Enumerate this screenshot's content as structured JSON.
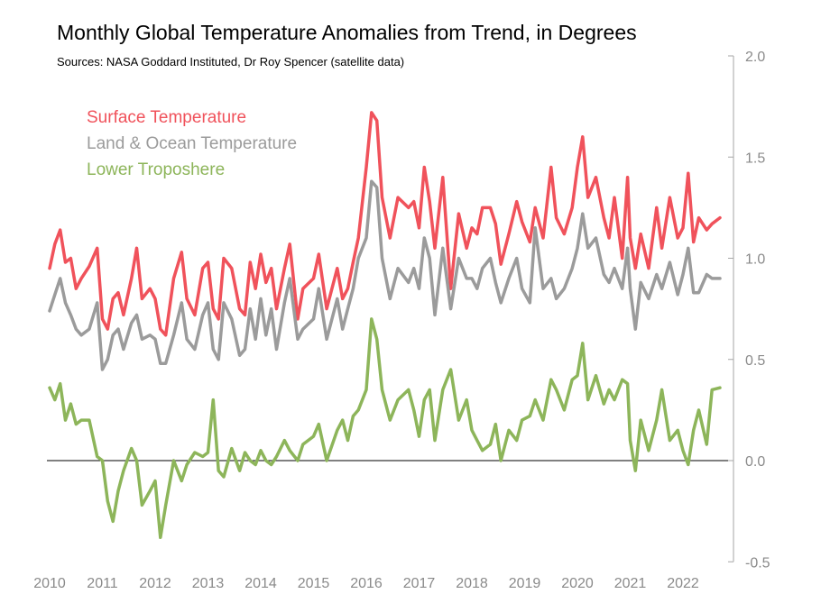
{
  "chart_data": {
    "type": "line",
    "title": "Monthly Global Temperature Anomalies from Trend, in Degrees",
    "subtitle": "Sources: NASA Goddard Instituted, Dr Roy Spencer (satellite data)",
    "x_tick_labels": [
      "2010",
      "2011",
      "2012",
      "2013",
      "2014",
      "2015",
      "2016",
      "2017",
      "2018",
      "2019",
      "2020",
      "2021",
      "2022"
    ],
    "y_tick_labels": [
      "2.0",
      "1.5",
      "1.0",
      "0.5",
      "0.0",
      "-0.5"
    ],
    "ylim": [
      -0.5,
      2.0
    ],
    "xlim": [
      2010.0,
      2022.75
    ],
    "y_axis_position": "right",
    "grid": false,
    "legend_position": "top-left",
    "series": [
      {
        "name": "Surface Temperature",
        "color": "#f0525b",
        "x": [
          2010.0,
          2010.1,
          2010.2,
          2010.3,
          2010.4,
          2010.5,
          2010.6,
          2010.75,
          2010.9,
          2011.0,
          2011.1,
          2011.2,
          2011.3,
          2011.4,
          2011.55,
          2011.65,
          2011.75,
          2011.9,
          2012.0,
          2012.1,
          2012.2,
          2012.35,
          2012.5,
          2012.6,
          2012.75,
          2012.9,
          2013.0,
          2013.1,
          2013.2,
          2013.3,
          2013.45,
          2013.6,
          2013.7,
          2013.8,
          2013.9,
          2014.0,
          2014.1,
          2014.2,
          2014.3,
          2014.45,
          2014.55,
          2014.7,
          2014.8,
          2015.0,
          2015.1,
          2015.25,
          2015.45,
          2015.55,
          2015.65,
          2015.75,
          2015.85,
          2016.0,
          2016.1,
          2016.2,
          2016.3,
          2016.45,
          2016.6,
          2016.8,
          2016.9,
          2017.0,
          2017.1,
          2017.2,
          2017.3,
          2017.45,
          2017.6,
          2017.75,
          2017.9,
          2018.0,
          2018.1,
          2018.2,
          2018.35,
          2018.45,
          2018.55,
          2018.7,
          2018.85,
          2018.95,
          2019.1,
          2019.2,
          2019.35,
          2019.5,
          2019.6,
          2019.75,
          2019.9,
          2020.0,
          2020.1,
          2020.2,
          2020.35,
          2020.5,
          2020.6,
          2020.7,
          2020.85,
          2020.95,
          2021.0,
          2021.1,
          2021.2,
          2021.35,
          2021.5,
          2021.6,
          2021.75,
          2021.9,
          2022.0,
          2022.1,
          2022.2,
          2022.3,
          2022.45,
          2022.55,
          2022.7
        ],
        "y": [
          0.95,
          1.07,
          1.14,
          0.98,
          1.0,
          0.85,
          0.9,
          0.96,
          1.05,
          0.7,
          0.65,
          0.8,
          0.83,
          0.72,
          0.9,
          1.05,
          0.8,
          0.85,
          0.8,
          0.65,
          0.62,
          0.9,
          1.03,
          0.8,
          0.72,
          0.95,
          0.98,
          0.75,
          0.7,
          1.0,
          0.95,
          0.75,
          0.72,
          0.98,
          0.85,
          1.02,
          0.88,
          0.95,
          0.75,
          0.95,
          1.07,
          0.7,
          0.85,
          0.9,
          1.02,
          0.75,
          0.95,
          0.8,
          0.85,
          0.98,
          1.1,
          1.45,
          1.72,
          1.68,
          1.3,
          1.1,
          1.3,
          1.25,
          1.28,
          1.15,
          1.45,
          1.28,
          1.05,
          1.4,
          0.85,
          1.22,
          1.05,
          1.15,
          1.12,
          1.25,
          1.25,
          1.17,
          0.97,
          1.12,
          1.28,
          1.18,
          1.08,
          1.25,
          1.1,
          1.45,
          1.2,
          1.12,
          1.25,
          1.45,
          1.6,
          1.3,
          1.4,
          1.2,
          1.1,
          1.3,
          1.0,
          1.4,
          1.1,
          0.95,
          1.12,
          0.95,
          1.25,
          1.05,
          1.3,
          1.1,
          1.15,
          1.42,
          1.08,
          1.2,
          1.14,
          1.17,
          1.2
        ]
      },
      {
        "name": "Land & Ocean Temperature",
        "color": "#9b9b9b",
        "x": [
          2010.0,
          2010.1,
          2010.2,
          2010.3,
          2010.4,
          2010.5,
          2010.6,
          2010.75,
          2010.9,
          2011.0,
          2011.1,
          2011.2,
          2011.3,
          2011.4,
          2011.55,
          2011.65,
          2011.75,
          2011.9,
          2012.0,
          2012.1,
          2012.2,
          2012.35,
          2012.5,
          2012.6,
          2012.75,
          2012.9,
          2013.0,
          2013.1,
          2013.2,
          2013.3,
          2013.45,
          2013.6,
          2013.7,
          2013.8,
          2013.9,
          2014.0,
          2014.1,
          2014.2,
          2014.3,
          2014.45,
          2014.55,
          2014.7,
          2014.8,
          2015.0,
          2015.1,
          2015.25,
          2015.45,
          2015.55,
          2015.65,
          2015.75,
          2015.85,
          2016.0,
          2016.1,
          2016.2,
          2016.3,
          2016.45,
          2016.6,
          2016.8,
          2016.9,
          2017.0,
          2017.1,
          2017.2,
          2017.3,
          2017.45,
          2017.6,
          2017.75,
          2017.9,
          2018.0,
          2018.1,
          2018.2,
          2018.35,
          2018.45,
          2018.55,
          2018.7,
          2018.85,
          2018.95,
          2019.1,
          2019.2,
          2019.35,
          2019.5,
          2019.6,
          2019.75,
          2019.9,
          2020.0,
          2020.1,
          2020.2,
          2020.35,
          2020.5,
          2020.6,
          2020.7,
          2020.85,
          2020.95,
          2021.0,
          2021.1,
          2021.2,
          2021.35,
          2021.5,
          2021.6,
          2021.75,
          2021.9,
          2022.0,
          2022.1,
          2022.2,
          2022.3,
          2022.45,
          2022.55,
          2022.7
        ],
        "y": [
          0.74,
          0.82,
          0.9,
          0.78,
          0.72,
          0.65,
          0.62,
          0.65,
          0.78,
          0.45,
          0.5,
          0.62,
          0.65,
          0.55,
          0.68,
          0.72,
          0.6,
          0.62,
          0.6,
          0.48,
          0.48,
          0.62,
          0.78,
          0.6,
          0.55,
          0.72,
          0.78,
          0.55,
          0.5,
          0.78,
          0.7,
          0.52,
          0.55,
          0.75,
          0.6,
          0.8,
          0.62,
          0.75,
          0.55,
          0.78,
          0.9,
          0.6,
          0.65,
          0.7,
          0.85,
          0.6,
          0.8,
          0.65,
          0.75,
          0.85,
          1.0,
          1.1,
          1.38,
          1.35,
          1.0,
          0.8,
          0.95,
          0.88,
          0.95,
          0.85,
          1.1,
          1.0,
          0.72,
          1.05,
          0.75,
          1.0,
          0.9,
          0.9,
          0.85,
          0.95,
          1.0,
          0.88,
          0.78,
          0.9,
          1.0,
          0.85,
          0.78,
          1.15,
          0.85,
          0.9,
          0.8,
          0.85,
          0.95,
          1.05,
          1.22,
          1.05,
          1.1,
          0.92,
          0.88,
          0.95,
          0.85,
          1.05,
          0.85,
          0.65,
          0.88,
          0.8,
          0.92,
          0.85,
          0.98,
          0.82,
          0.92,
          1.05,
          0.83,
          0.83,
          0.92,
          0.9,
          0.9
        ]
      },
      {
        "name": "Lower Troposhere",
        "color": "#8db55a",
        "x": [
          2010.0,
          2010.1,
          2010.2,
          2010.3,
          2010.4,
          2010.5,
          2010.6,
          2010.75,
          2010.9,
          2011.0,
          2011.1,
          2011.2,
          2011.3,
          2011.4,
          2011.55,
          2011.65,
          2011.75,
          2011.9,
          2012.0,
          2012.1,
          2012.2,
          2012.35,
          2012.5,
          2012.6,
          2012.75,
          2012.9,
          2013.0,
          2013.1,
          2013.2,
          2013.3,
          2013.45,
          2013.6,
          2013.7,
          2013.8,
          2013.9,
          2014.0,
          2014.1,
          2014.2,
          2014.3,
          2014.45,
          2014.55,
          2014.7,
          2014.8,
          2015.0,
          2015.1,
          2015.25,
          2015.45,
          2015.55,
          2015.65,
          2015.75,
          2015.85,
          2016.0,
          2016.1,
          2016.2,
          2016.3,
          2016.45,
          2016.6,
          2016.8,
          2016.9,
          2017.0,
          2017.1,
          2017.2,
          2017.3,
          2017.45,
          2017.6,
          2017.75,
          2017.9,
          2018.0,
          2018.1,
          2018.2,
          2018.35,
          2018.45,
          2018.55,
          2018.7,
          2018.85,
          2018.95,
          2019.1,
          2019.2,
          2019.35,
          2019.5,
          2019.6,
          2019.75,
          2019.9,
          2020.0,
          2020.1,
          2020.2,
          2020.35,
          2020.5,
          2020.6,
          2020.7,
          2020.85,
          2020.95,
          2021.0,
          2021.1,
          2021.2,
          2021.35,
          2021.5,
          2021.6,
          2021.75,
          2021.9,
          2022.0,
          2022.1,
          2022.2,
          2022.3,
          2022.45,
          2022.55,
          2022.7
        ],
        "y": [
          0.36,
          0.3,
          0.38,
          0.2,
          0.28,
          0.18,
          0.2,
          0.2,
          0.02,
          0.0,
          -0.2,
          -0.3,
          -0.15,
          -0.05,
          0.06,
          0.0,
          -0.22,
          -0.15,
          -0.1,
          -0.38,
          -0.22,
          0.0,
          -0.1,
          -0.02,
          0.04,
          0.02,
          0.04,
          0.3,
          -0.05,
          -0.08,
          0.06,
          -0.05,
          0.04,
          0.0,
          -0.02,
          0.05,
          0.0,
          -0.02,
          0.02,
          0.1,
          0.05,
          0.0,
          0.08,
          0.12,
          0.18,
          0.0,
          0.15,
          0.2,
          0.1,
          0.22,
          0.25,
          0.35,
          0.7,
          0.6,
          0.35,
          0.2,
          0.3,
          0.35,
          0.25,
          0.12,
          0.3,
          0.35,
          0.1,
          0.35,
          0.45,
          0.2,
          0.3,
          0.15,
          0.1,
          0.05,
          0.08,
          0.18,
          0.0,
          0.15,
          0.1,
          0.2,
          0.22,
          0.3,
          0.2,
          0.4,
          0.35,
          0.25,
          0.4,
          0.42,
          0.58,
          0.3,
          0.42,
          0.28,
          0.35,
          0.3,
          0.4,
          0.38,
          0.1,
          -0.05,
          0.2,
          0.05,
          0.2,
          0.35,
          0.1,
          0.15,
          0.05,
          -0.02,
          0.15,
          0.25,
          0.08,
          0.35,
          0.36
        ]
      }
    ]
  }
}
